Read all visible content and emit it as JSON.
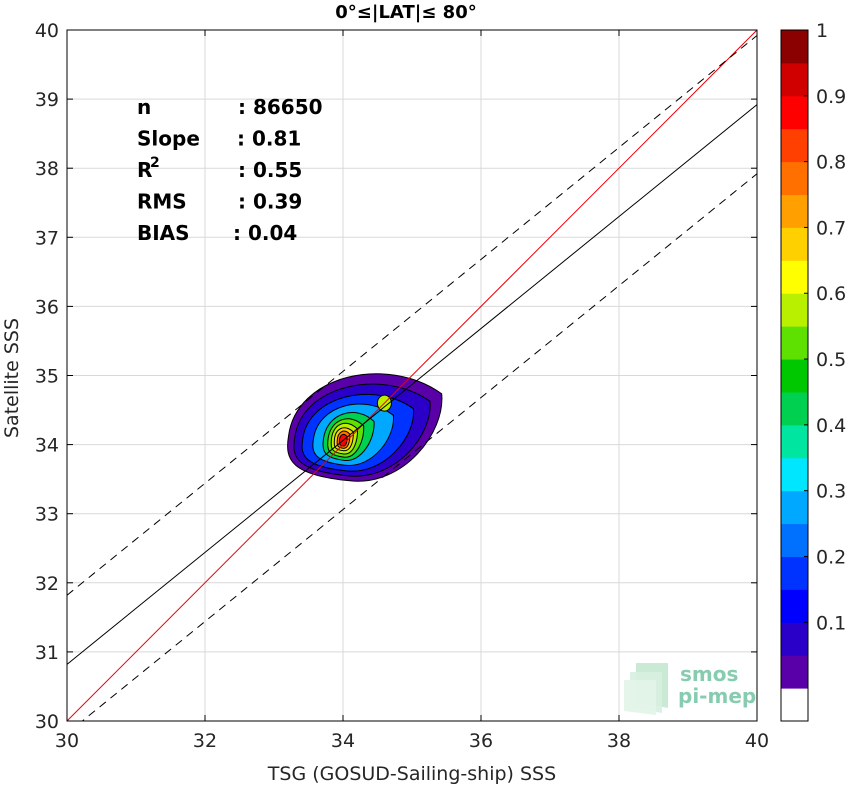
{
  "chart_data": {
    "type": "scatter",
    "title": "0°≤|LAT|≤ 80°",
    "xlabel": "TSG (GOSUD-Sailing-ship) SSS",
    "ylabel": "Satellite SSS",
    "xlim": [
      30,
      40
    ],
    "ylim": [
      30,
      40
    ],
    "xticks": [
      "30",
      "32",
      "34",
      "36",
      "38",
      "40"
    ],
    "yticks": [
      "30",
      "31",
      "32",
      "33",
      "34",
      "35",
      "36",
      "37",
      "38",
      "39",
      "40"
    ],
    "grid": true,
    "stats": [
      {
        "label": "n",
        "value": ": 86650"
      },
      {
        "label": "Slope",
        "value": ": 0.81"
      },
      {
        "label": "R",
        "sup": "2",
        "value": ": 0.55"
      },
      {
        "label": "RMS",
        "value": ": 0.39"
      },
      {
        "label": "BIAS",
        "value": ": 0.04"
      }
    ],
    "lines": [
      {
        "style": "identity",
        "color": "#e8000b",
        "x": [
          30,
          40
        ],
        "y": [
          30,
          40
        ]
      },
      {
        "style": "regression",
        "color": "#000000",
        "x": [
          30,
          40
        ],
        "y": [
          30.82,
          38.92
        ]
      },
      {
        "style": "dashed-upper",
        "color": "#000000",
        "x": [
          30,
          40
        ],
        "y": [
          31.82,
          39.92
        ]
      },
      {
        "style": "dashed-lower",
        "color": "#000000",
        "x": [
          30,
          40
        ],
        "y": [
          29.82,
          37.92
        ]
      }
    ],
    "density_peak": {
      "x": 34.0,
      "y": 34.05,
      "value": 1.0
    },
    "secondary_peak": {
      "x": 34.6,
      "y": 34.6
    },
    "colorbar": {
      "ticks": [
        "0.1",
        "0.2",
        "0.3",
        "0.4",
        "0.5",
        "0.6",
        "0.7",
        "0.8",
        "0.9",
        "1"
      ],
      "colors": [
        "#ffffff",
        "#5a00a8",
        "#2a00c8",
        "#0000ff",
        "#0033ff",
        "#0070ff",
        "#00a8ff",
        "#00e6ff",
        "#00e6a0",
        "#00d050",
        "#00c800",
        "#5ee000",
        "#b8f000",
        "#ffff00",
        "#ffd000",
        "#ffa000",
        "#ff7000",
        "#ff4000",
        "#ff0000",
        "#d00000",
        "#8b0000"
      ]
    },
    "watermark": [
      "smos",
      "pi-mep"
    ]
  }
}
